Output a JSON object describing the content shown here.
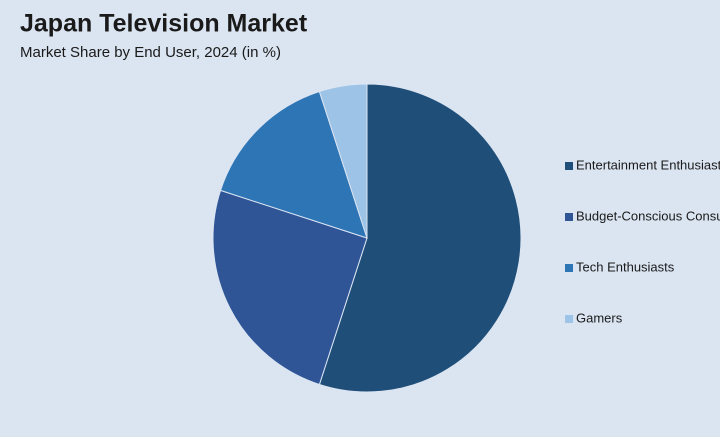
{
  "chart_data": {
    "type": "pie",
    "title": "Japan Television Market",
    "subtitle": "Market Share by End User, 2024 (in %)",
    "categories": [
      "Entertainment Enthusiasts",
      "Budget-Conscious Consumers",
      "Tech Enthusiasts",
      "Gamers"
    ],
    "values": [
      55,
      25,
      15,
      5
    ],
    "colors": [
      "#1f4e79",
      "#2f5597",
      "#2e75b6",
      "#9dc3e6"
    ],
    "legend": "right"
  }
}
